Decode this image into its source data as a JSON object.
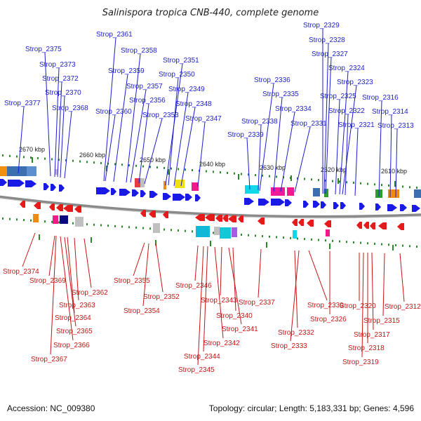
{
  "title": "Salinispora tropica CNB-440, complete genome",
  "footer": {
    "accession": "Accession: NC_009380",
    "summary": "Topology: circular; Length: 5,183,331 bp; Genes: 4,596"
  },
  "colors": {
    "top_label": "#1c1ccf",
    "bottom_label": "#c81414",
    "forward_gene": "#1a1ae6",
    "reverse_gene": "#e61a1a",
    "backbone": "#8a8a8a",
    "tick": "#2a8a2a"
  },
  "scale_labels": [
    "2670 kbp",
    "2660 kbp",
    "2650 kbp",
    "2640 kbp",
    "2630 kbp",
    "2620 kbp",
    "2610 kbp"
  ],
  "top_genes": [
    "Strop_2377",
    "Strop_2375",
    "Strop_2373",
    "Strop_2372",
    "Strop_2370",
    "Strop_2368",
    "Strop_2361",
    "Strop_2360",
    "Strop_2359",
    "Strop_2358",
    "Strop_2357",
    "Strop_2356",
    "Strop_2353",
    "Strop_2351",
    "Strop_2350",
    "Strop_2349",
    "Strop_2348",
    "Strop_2347",
    "Strop_2339",
    "Strop_2338",
    "Strop_2336",
    "Strop_2335",
    "Strop_2334",
    "Strop_2331",
    "Strop_2329",
    "Strop_2328",
    "Strop_2327",
    "Strop_2325",
    "Strop_2324",
    "Strop_2323",
    "Strop_2322",
    "Strop_2321",
    "Strop_2316",
    "Strop_2314",
    "Strop_2313"
  ],
  "bottom_genes": [
    "Strop_2374",
    "Strop_2369",
    "Strop_2362",
    "Strop_2363",
    "Strop_2364",
    "Strop_2365",
    "Strop_2366",
    "Strop_2367",
    "Strop_2355",
    "Strop_2352",
    "Strop_2354",
    "Strop_2346",
    "Strop_2343",
    "Strop_2340",
    "Strop_2341",
    "Strop_2342",
    "Strop_2344",
    "Strop_2345",
    "Strop_2337",
    "Strop_2330",
    "Strop_2332",
    "Strop_2333",
    "Strop_2326",
    "Strop_2320",
    "Strop_2312",
    "Strop_2315",
    "Strop_2317",
    "Strop_2318",
    "Strop_2319"
  ]
}
